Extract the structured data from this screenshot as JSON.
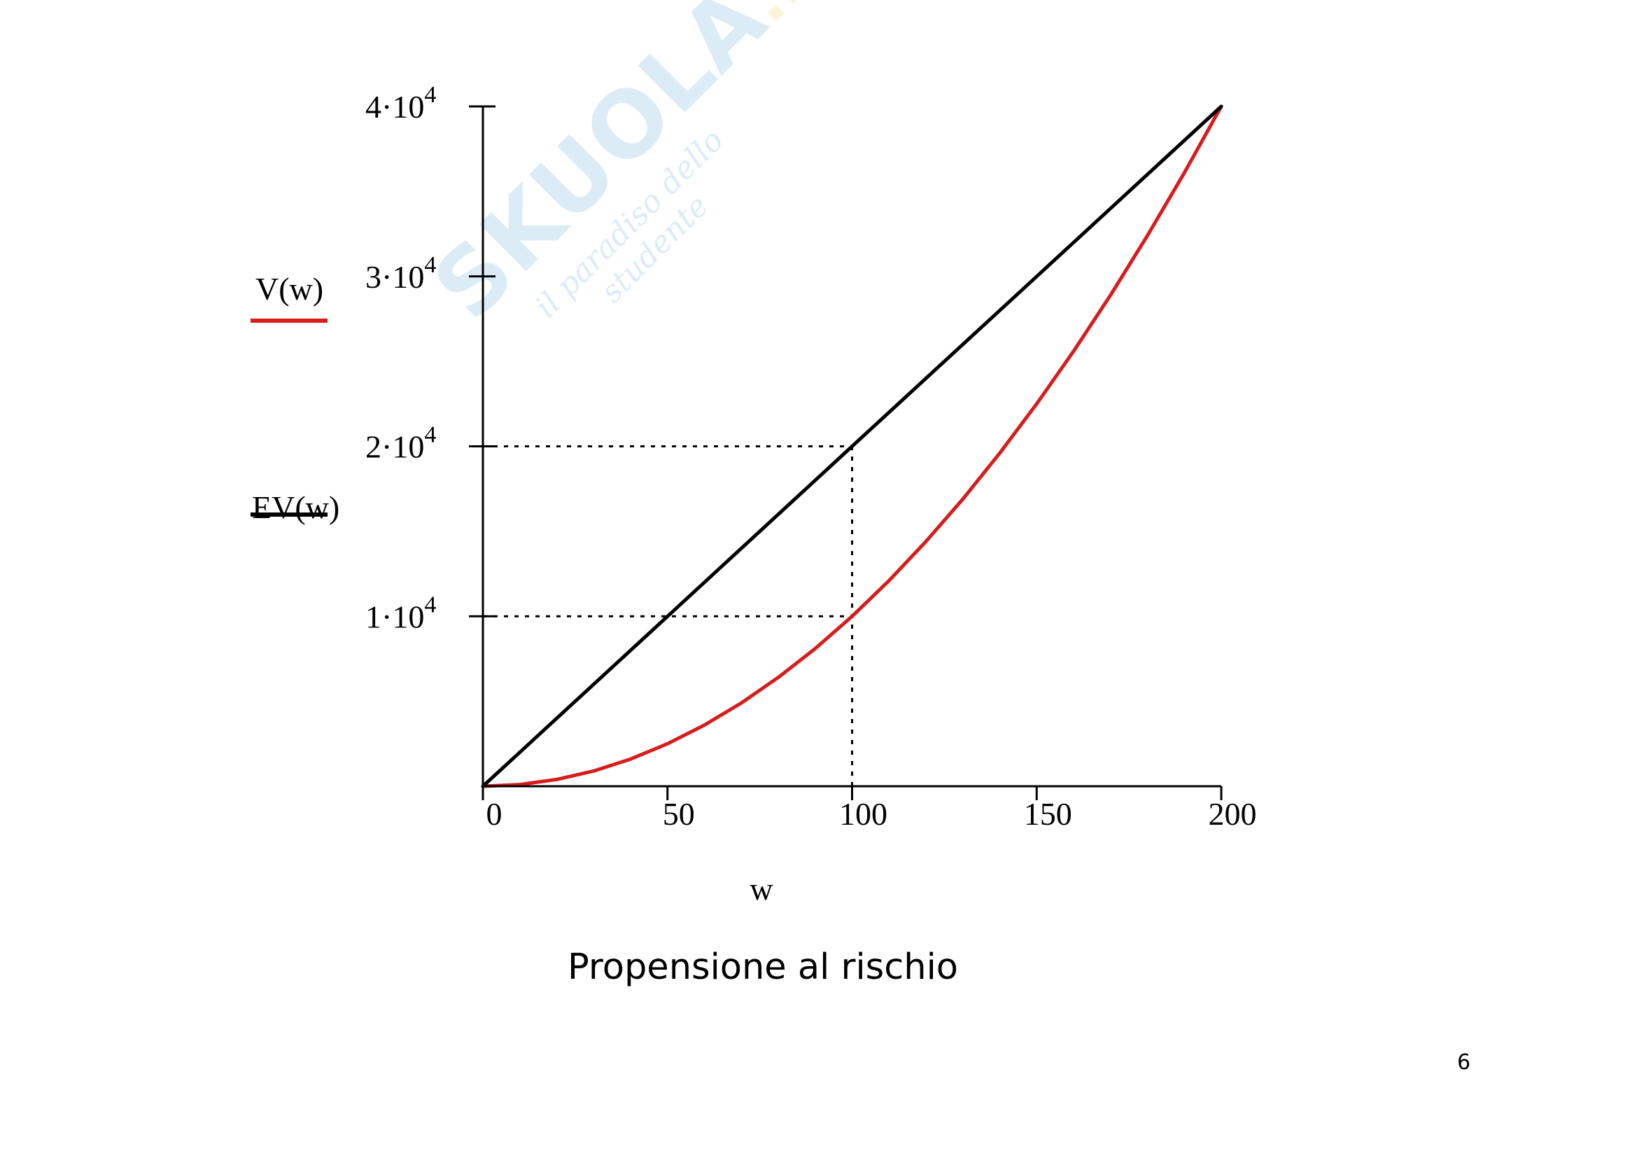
{
  "watermark": {
    "brand": "SKUOLA",
    "tld": ".net",
    "tagline": "il paradiso dello studente"
  },
  "caption": "Propensione al rischio",
  "page_number": "6",
  "colors": {
    "ev_line": "#000000",
    "v_curve": "#d81b1b",
    "axes": "#000000"
  },
  "chart_data": {
    "type": "line",
    "xlabel": "w",
    "ylabel": "",
    "xlim": [
      0,
      200
    ],
    "ylim": [
      0,
      40000
    ],
    "x_ticks": [
      {
        "value": 0,
        "label": "0"
      },
      {
        "value": 50,
        "label": "50"
      },
      {
        "value": 100,
        "label": "100"
      },
      {
        "value": 150,
        "label": "150"
      },
      {
        "value": 200,
        "label": "200"
      }
    ],
    "y_ticks": [
      {
        "value": 10000,
        "mantissa": "1",
        "base": "·10",
        "exp": "4"
      },
      {
        "value": 20000,
        "mantissa": "2",
        "base": "·10",
        "exp": "4"
      },
      {
        "value": 30000,
        "mantissa": "3",
        "base": "·10",
        "exp": "4"
      },
      {
        "value": 40000,
        "mantissa": "4",
        "base": "·10",
        "exp": "4"
      }
    ],
    "legend_position": "left",
    "series": [
      {
        "name": "V(w)",
        "color": "#d81b1b",
        "x": [
          0,
          10,
          20,
          30,
          40,
          50,
          60,
          70,
          80,
          90,
          100,
          110,
          120,
          130,
          140,
          150,
          160,
          170,
          180,
          190,
          200
        ],
        "y": [
          0,
          100,
          400,
          900,
          1600,
          2500,
          3600,
          4900,
          6400,
          8100,
          10000,
          12100,
          14400,
          16900,
          19600,
          22500,
          25600,
          28900,
          32400,
          36100,
          40000
        ]
      },
      {
        "name": "EV(w)",
        "color": "#000000",
        "x": [
          0,
          50,
          100,
          150,
          200
        ],
        "y": [
          0,
          10000,
          20000,
          30000,
          40000
        ]
      }
    ],
    "reference_lines": [
      {
        "from": [
          0,
          20000
        ],
        "to": [
          100,
          20000
        ],
        "style": "dotted"
      },
      {
        "from": [
          0,
          10000
        ],
        "to": [
          100,
          10000
        ],
        "style": "dotted"
      },
      {
        "from": [
          100,
          0
        ],
        "to": [
          100,
          20000
        ],
        "style": "dotted"
      }
    ]
  }
}
